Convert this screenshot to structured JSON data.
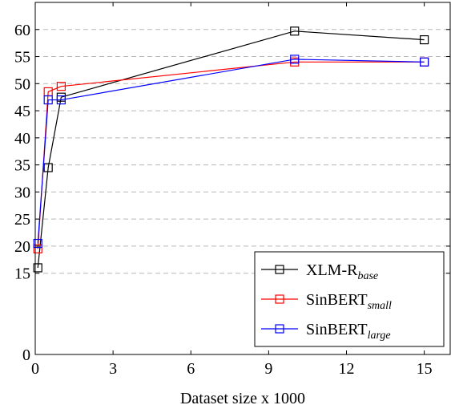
{
  "chart_data": {
    "type": "line",
    "title": "",
    "xlabel": "Dataset size x 1000",
    "ylabel": "",
    "xlim": [
      0,
      16
    ],
    "ylim": [
      0,
      65
    ],
    "xticks": [
      0,
      3,
      6,
      9,
      12,
      15
    ],
    "yticks": [
      0,
      15,
      20,
      25,
      30,
      35,
      40,
      45,
      50,
      55,
      60
    ],
    "grid": "horizontal dashed at y ticks 15–60",
    "legend_position": "bottom-right",
    "marker": "square",
    "series": [
      {
        "name": "XLM-R",
        "name_subscript": "base",
        "color": "#000000",
        "x": [
          0.1,
          0.5,
          1,
          10,
          15
        ],
        "values": [
          16.0,
          34.5,
          47.5,
          59.7,
          58.1
        ]
      },
      {
        "name": "SinBERT",
        "name_subscript": "small",
        "color": "#ff0000",
        "x": [
          0.1,
          0.5,
          1,
          10,
          15
        ],
        "values": [
          19.5,
          48.5,
          49.5,
          54.0,
          54.0
        ]
      },
      {
        "name": "SinBERT",
        "name_subscript": "large",
        "color": "#0000ff",
        "x": [
          0.1,
          0.5,
          1,
          10,
          15
        ],
        "values": [
          20.5,
          47.0,
          47.0,
          54.5,
          54.0
        ]
      }
    ]
  }
}
